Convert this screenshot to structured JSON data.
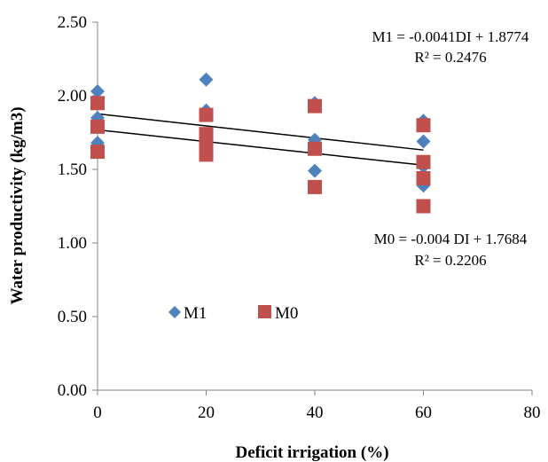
{
  "chart_data": {
    "type": "scatter",
    "title": "",
    "xlabel": "Deficit irrigation (%)",
    "ylabel": "Water productivity (kg/m3)",
    "xlim": [
      0,
      80
    ],
    "ylim": [
      0,
      2.5
    ],
    "xticks": [
      "0",
      "20",
      "40",
      "60",
      "80"
    ],
    "yticks": [
      "0.00",
      "0.50",
      "1.00",
      "1.50",
      "2.00",
      "2.50"
    ],
    "grid": false,
    "legend_position": "center-left",
    "series": [
      {
        "name": "M1",
        "marker": "diamond",
        "color": "#4f81bd",
        "x": [
          0,
          0,
          0,
          0,
          20,
          20,
          20,
          20,
          40,
          40,
          40,
          40,
          60,
          60,
          60,
          60
        ],
        "y": [
          2.03,
          1.85,
          1.68,
          1.62,
          2.11,
          1.9,
          1.74,
          1.66,
          1.95,
          1.7,
          1.64,
          1.49,
          1.83,
          1.69,
          1.52,
          1.39
        ]
      },
      {
        "name": "M0",
        "marker": "square",
        "color": "#c0504d",
        "x": [
          0,
          0,
          0,
          20,
          20,
          20,
          20,
          40,
          40,
          40,
          60,
          60,
          60,
          60
        ],
        "y": [
          1.95,
          1.79,
          1.62,
          1.87,
          1.74,
          1.68,
          1.6,
          1.93,
          1.64,
          1.38,
          1.8,
          1.55,
          1.44,
          1.25
        ]
      }
    ],
    "trendlines": [
      {
        "series": "M1",
        "equation": "M1 = -0.0041DI + 1.8774",
        "r2": "R² = 0.2476",
        "slope": -0.0041,
        "intercept": 1.8774,
        "x_range": [
          0,
          60
        ]
      },
      {
        "series": "M0",
        "equation": "M0 = -0.004 DI + 1.7684",
        "r2": "R² = 0.2206",
        "slope": -0.004,
        "intercept": 1.7684,
        "x_range": [
          0,
          60
        ]
      }
    ]
  }
}
